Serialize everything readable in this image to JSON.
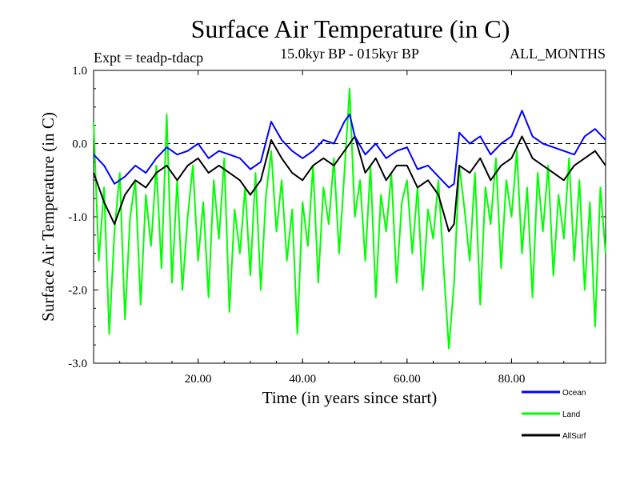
{
  "chart_data": {
    "type": "line",
    "title": "Surface Air Temperature (in C)",
    "subtitle": "15.0kyr BP - 015kyr BP",
    "experiment_label": "Expt = teadp-tdacp",
    "period_label": "ALL_MONTHS",
    "xlabel": "Time (in years since start)",
    "ylabel": "Surface Air Temperature (in C)",
    "xlim": [
      0,
      98
    ],
    "ylim": [
      -3.0,
      1.0
    ],
    "x_ticks": [
      20,
      40,
      60,
      80
    ],
    "x_tick_labels": [
      "20.00",
      "40.00",
      "60.00",
      "80.00"
    ],
    "y_ticks": [
      1.0,
      0.0,
      -1.0,
      -2.0,
      -3.0
    ],
    "y_tick_labels": [
      "1.0",
      "0.0",
      "-1.0",
      "-2.0",
      "-3.0"
    ],
    "reference_line": 0.0,
    "legend_position": "bottom-right",
    "series": [
      {
        "name": "Ocean",
        "color": "#0000ff",
        "x": [
          0,
          2,
          4,
          6,
          8,
          10,
          12,
          14,
          16,
          18,
          20,
          22,
          24,
          26,
          28,
          30,
          32,
          34,
          36,
          38,
          40,
          42,
          44,
          46,
          48,
          49,
          50,
          52,
          54,
          56,
          58,
          60,
          62,
          64,
          66,
          68,
          69,
          70,
          72,
          74,
          76,
          78,
          80,
          82,
          84,
          86,
          88,
          90,
          92,
          94,
          96,
          98
        ],
        "values": [
          -0.15,
          -0.3,
          -0.55,
          -0.45,
          -0.3,
          -0.4,
          -0.2,
          -0.05,
          -0.15,
          -0.1,
          0.0,
          -0.2,
          -0.1,
          -0.15,
          -0.2,
          -0.35,
          -0.25,
          0.3,
          0.05,
          -0.1,
          -0.2,
          -0.1,
          0.05,
          0.0,
          0.3,
          0.4,
          0.1,
          -0.15,
          0.0,
          -0.2,
          -0.1,
          -0.05,
          -0.35,
          -0.3,
          -0.45,
          -0.6,
          -0.55,
          0.15,
          0.0,
          0.1,
          -0.15,
          0.0,
          0.1,
          0.45,
          0.1,
          0.0,
          -0.05,
          -0.1,
          -0.15,
          0.1,
          0.2,
          0.05
        ]
      },
      {
        "name": "Land",
        "color": "#00ff00",
        "x": [
          0,
          1,
          2,
          3,
          4,
          5,
          6,
          7,
          8,
          9,
          10,
          11,
          12,
          13,
          14,
          15,
          16,
          17,
          18,
          19,
          20,
          21,
          22,
          23,
          24,
          25,
          26,
          27,
          28,
          29,
          30,
          31,
          32,
          33,
          34,
          35,
          36,
          37,
          38,
          39,
          40,
          41,
          42,
          43,
          44,
          45,
          46,
          47,
          48,
          49,
          50,
          51,
          52,
          53,
          54,
          55,
          56,
          57,
          58,
          59,
          60,
          61,
          62,
          63,
          64,
          65,
          66,
          67,
          68,
          69,
          70,
          71,
          72,
          73,
          74,
          75,
          76,
          77,
          78,
          79,
          80,
          81,
          82,
          83,
          84,
          85,
          86,
          87,
          88,
          89,
          90,
          91,
          92,
          93,
          94,
          95,
          96,
          97,
          98
        ],
        "values": [
          0.3,
          -1.6,
          -0.6,
          -2.6,
          -1.2,
          -0.4,
          -2.4,
          -1.0,
          -0.5,
          -2.2,
          -0.7,
          -1.4,
          -0.3,
          -1.7,
          0.4,
          -1.9,
          -0.5,
          -2.0,
          -1.0,
          -0.3,
          -1.6,
          -0.8,
          -2.1,
          -0.5,
          -1.3,
          -0.2,
          -2.3,
          -0.9,
          -1.5,
          -0.6,
          -1.8,
          -0.4,
          -2.0,
          -0.7,
          -0.1,
          -1.2,
          -0.5,
          -1.6,
          -0.9,
          -2.6,
          -0.8,
          -1.4,
          -0.3,
          -1.9,
          -0.6,
          -1.1,
          -0.2,
          -1.5,
          -0.4,
          0.75,
          -1.0,
          -0.5,
          -1.6,
          -0.3,
          -2.1,
          -0.7,
          -1.2,
          -0.4,
          -1.9,
          -0.8,
          -0.5,
          -1.5,
          -0.6,
          -2.0,
          -0.9,
          -1.3,
          -0.5,
          -1.7,
          -2.8,
          -1.9,
          -0.3,
          -0.9,
          -1.6,
          -0.4,
          -2.2,
          -0.6,
          -1.1,
          -0.2,
          -1.7,
          -0.5,
          -1.0,
          -0.1,
          -1.5,
          -0.6,
          -2.1,
          -0.4,
          -1.2,
          -0.3,
          -1.8,
          -0.7,
          -1.3,
          -0.2,
          -1.6,
          -0.5,
          -2.0,
          -0.8,
          -2.5,
          -0.6,
          -1.5
        ]
      },
      {
        "name": "AllSurf",
        "color": "#000000",
        "x": [
          0,
          2,
          4,
          6,
          8,
          10,
          12,
          14,
          16,
          18,
          20,
          22,
          24,
          26,
          28,
          30,
          32,
          34,
          36,
          38,
          40,
          42,
          44,
          46,
          48,
          50,
          52,
          54,
          56,
          58,
          60,
          62,
          64,
          66,
          68,
          69,
          70,
          72,
          74,
          76,
          78,
          80,
          82,
          84,
          86,
          88,
          90,
          92,
          94,
          96,
          98
        ],
        "values": [
          -0.4,
          -0.8,
          -1.1,
          -0.7,
          -0.5,
          -0.6,
          -0.4,
          -0.3,
          -0.5,
          -0.3,
          -0.2,
          -0.4,
          -0.3,
          -0.4,
          -0.5,
          -0.7,
          -0.5,
          0.05,
          -0.2,
          -0.4,
          -0.5,
          -0.3,
          -0.2,
          -0.3,
          -0.1,
          0.1,
          -0.4,
          -0.2,
          -0.5,
          -0.3,
          -0.3,
          -0.6,
          -0.5,
          -0.7,
          -1.2,
          -1.1,
          -0.3,
          -0.4,
          -0.2,
          -0.5,
          -0.3,
          -0.2,
          0.1,
          -0.2,
          -0.3,
          -0.4,
          -0.5,
          -0.3,
          -0.2,
          -0.1,
          -0.3
        ]
      }
    ]
  }
}
